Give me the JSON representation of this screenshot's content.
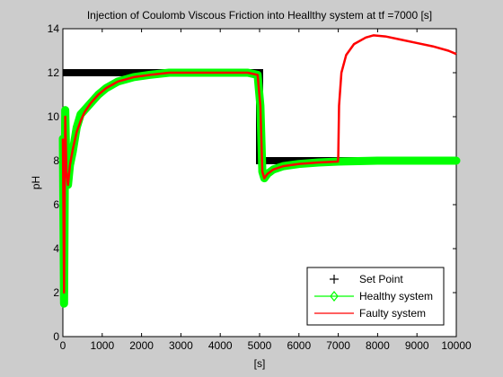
{
  "chart_data": {
    "type": "line",
    "title": "Injection of Coulomb Viscous Friction into Heallthy system at tf =7000 [s]",
    "xlabel": "[s]",
    "ylabel": "pH",
    "xlim": [
      0,
      10000
    ],
    "ylim": [
      0,
      14
    ],
    "xticks": [
      0,
      1000,
      2000,
      3000,
      4000,
      5000,
      6000,
      7000,
      8000,
      9000,
      10000
    ],
    "yticks": [
      0,
      2,
      4,
      6,
      8,
      10,
      12,
      14
    ],
    "grid": false,
    "legend_position": "bottom-right",
    "series": [
      {
        "name": "Set Point",
        "color": "#000000",
        "marker": "+",
        "x": [
          0,
          50,
          50,
          5000,
          5000,
          5300,
          5300,
          10000
        ],
        "y": [
          12,
          12,
          12,
          12,
          8,
          8,
          8,
          8
        ]
      },
      {
        "name": "Healthy system",
        "color": "#00ff00",
        "marker": "diamond",
        "x": [
          0,
          30,
          60,
          90,
          130,
          180,
          250,
          350,
          450,
          550,
          700,
          900,
          1100,
          1400,
          1800,
          2200,
          2700,
          3200,
          3700,
          4200,
          4700,
          4950,
          5020,
          5070,
          5120,
          5200,
          5350,
          5600,
          6000,
          6500,
          7000,
          7500,
          8000,
          9000,
          10000
        ],
        "y": [
          9.0,
          1.5,
          10.3,
          7.5,
          6.9,
          7.8,
          8.4,
          9.5,
          10.1,
          10.3,
          10.6,
          11.0,
          11.3,
          11.6,
          11.8,
          11.9,
          12.0,
          12.0,
          12.0,
          12.0,
          12.0,
          11.9,
          10.5,
          7.5,
          7.2,
          7.4,
          7.6,
          7.75,
          7.85,
          7.92,
          7.96,
          7.98,
          8.0,
          8.0,
          8.0
        ]
      },
      {
        "name": "Faulty system",
        "color": "#ff0000",
        "marker": "",
        "x": [
          0,
          30,
          60,
          90,
          130,
          180,
          250,
          350,
          450,
          550,
          700,
          900,
          1100,
          1400,
          1800,
          2200,
          2700,
          3200,
          3700,
          4200,
          4700,
          4950,
          5020,
          5070,
          5120,
          5200,
          5350,
          5600,
          6000,
          6500,
          6990,
          7000,
          7020,
          7080,
          7200,
          7400,
          7700,
          7900,
          8200,
          8600,
          9000,
          9400,
          9800,
          10000
        ],
        "y": [
          9.0,
          2.0,
          10.0,
          7.5,
          6.9,
          7.8,
          8.5,
          9.3,
          9.8,
          10.2,
          10.6,
          11.0,
          11.3,
          11.6,
          11.8,
          11.9,
          12.0,
          12.0,
          12.0,
          12.0,
          12.0,
          11.9,
          10.5,
          7.5,
          7.2,
          7.4,
          7.6,
          7.75,
          7.85,
          7.92,
          7.96,
          8.2,
          10.5,
          12.0,
          12.8,
          13.3,
          13.6,
          13.7,
          13.65,
          13.5,
          13.35,
          13.2,
          13.0,
          12.85
        ]
      }
    ]
  }
}
